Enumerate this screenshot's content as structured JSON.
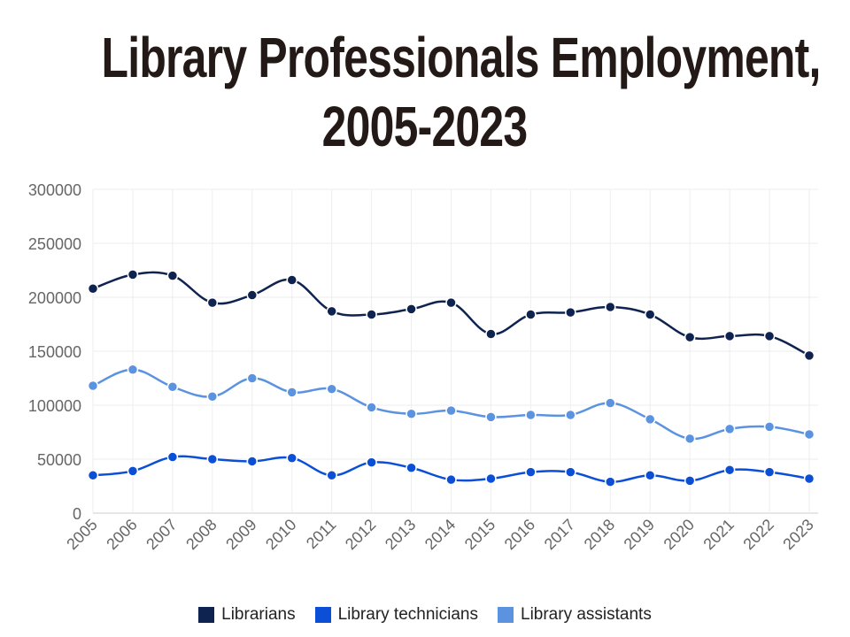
{
  "chart_data": {
    "type": "line",
    "title": "Library Professionals Employment, 2005-2023",
    "title_lines": [
      "Library Professionals Employment,",
      "2005-2023"
    ],
    "xlabel": "",
    "ylabel": "",
    "ylim": [
      0,
      300000
    ],
    "yticks": [
      "0",
      "50000",
      "100000",
      "150000",
      "200000",
      "250000",
      "300000"
    ],
    "ytick_values": [
      0,
      50000,
      100000,
      150000,
      200000,
      250000,
      300000
    ],
    "categories": [
      "2005",
      "2006",
      "2007",
      "2008",
      "2009",
      "2010",
      "2011",
      "2012",
      "2013",
      "2014",
      "2015",
      "2016",
      "2017",
      "2018",
      "2019",
      "2020",
      "2021",
      "2022",
      "2023"
    ],
    "grid": true,
    "legend_position": "bottom",
    "series": [
      {
        "name": "Librarians",
        "color": "#0f2350",
        "values": [
          208000,
          221000,
          220000,
          195000,
          202000,
          216000,
          187000,
          184000,
          189000,
          195000,
          166000,
          184000,
          186000,
          191000,
          184000,
          163000,
          164000,
          164000,
          146000
        ]
      },
      {
        "name": "Library technicians",
        "color": "#0b4fd6",
        "values": [
          35000,
          39000,
          52000,
          50000,
          48000,
          51000,
          35000,
          47000,
          42000,
          31000,
          32000,
          38000,
          38000,
          29000,
          35000,
          30000,
          40000,
          38000,
          32000
        ]
      },
      {
        "name": "Library assistants",
        "color": "#5b93e0",
        "values": [
          118000,
          133000,
          117000,
          108000,
          125000,
          112000,
          115000,
          98000,
          92000,
          95000,
          89000,
          91000,
          91000,
          102000,
          87000,
          69000,
          78000,
          80000,
          73000
        ]
      }
    ]
  }
}
